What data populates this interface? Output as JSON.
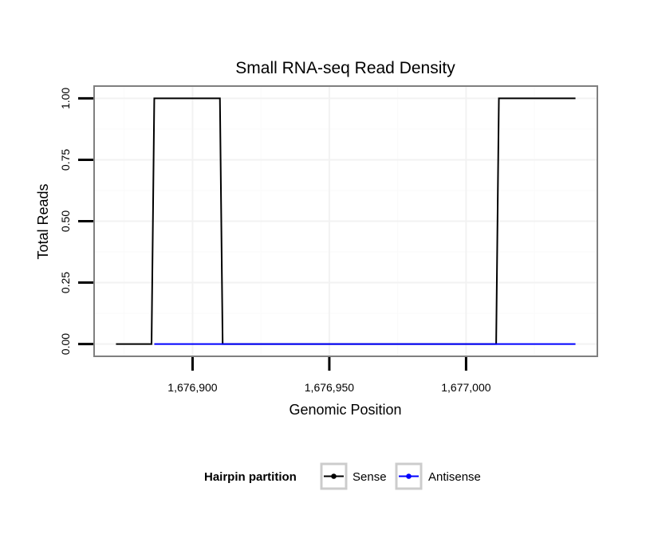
{
  "chart_data": {
    "type": "line",
    "title": "Small RNA-seq Read Density",
    "xlabel": "Genomic Position",
    "ylabel": "Total Reads",
    "xlim": [
      1676864,
      1677048
    ],
    "ylim": [
      -0.05,
      1.05
    ],
    "x_ticks": [
      1676900,
      1676950,
      1677000
    ],
    "x_tick_labels": [
      "1,676,900",
      "1,676,950",
      "1,677,000"
    ],
    "y_ticks": [
      0,
      0.25,
      0.5,
      0.75,
      1
    ],
    "y_tick_labels": [
      "0.00",
      "0.25",
      "0.50",
      "0.75",
      "1.00"
    ],
    "grid": true,
    "legend": {
      "title": "Hairpin partition",
      "position": "bottom",
      "entries": [
        {
          "label": "Sense",
          "color": "#000000"
        },
        {
          "label": "Antisense",
          "color": "#0000ff"
        }
      ]
    },
    "series": [
      {
        "name": "Sense",
        "color": "#000000",
        "x": [
          1676872,
          1676885,
          1676886,
          1676910,
          1676911,
          1677011,
          1677012,
          1677040
        ],
        "y": [
          0,
          0,
          1,
          1,
          0,
          0,
          1,
          1
        ]
      },
      {
        "name": "Antisense",
        "color": "#0000ff",
        "x": [
          1676886,
          1676911,
          1677012,
          1677040
        ],
        "y": [
          0,
          0,
          0,
          0
        ]
      }
    ]
  }
}
